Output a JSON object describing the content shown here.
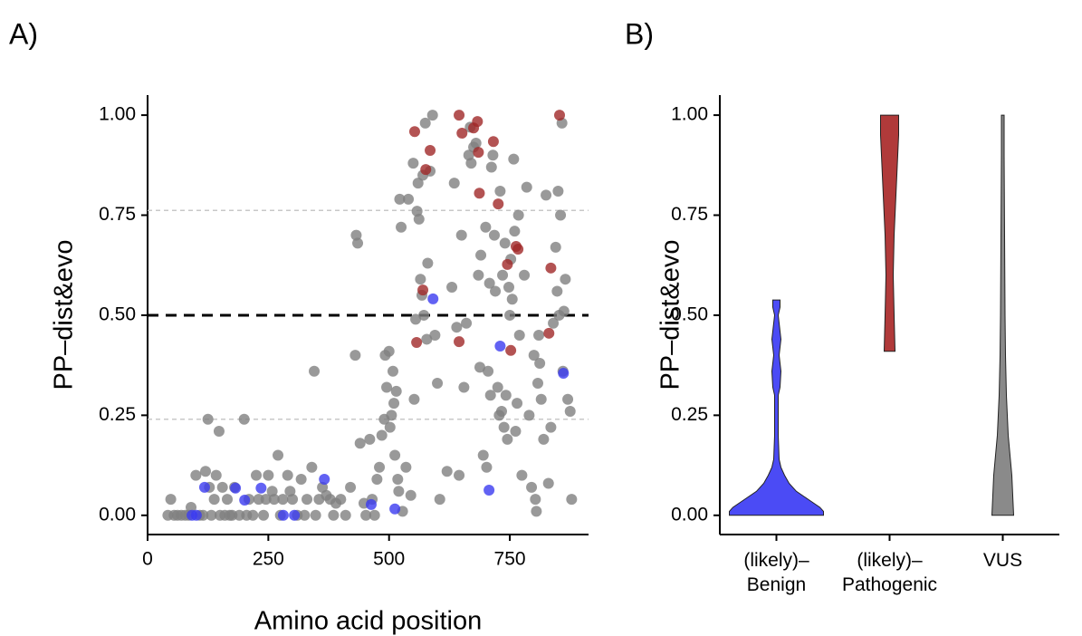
{
  "chart_data": [
    {
      "type": "scatter",
      "panel_label": "A)",
      "xlabel": "Amino acid position",
      "ylabel": "PP–dist&evo",
      "xlim": [
        0,
        913
      ],
      "ylim": [
        -0.048,
        1.05
      ],
      "xticks": [
        0,
        250,
        500,
        750
      ],
      "yticks": [
        {
          "value": 0,
          "label": "0.00"
        },
        {
          "value": 0.25,
          "label": "0.25"
        },
        {
          "value": 0.5,
          "label": "0.50"
        },
        {
          "value": 0.75,
          "label": "0.75"
        },
        {
          "value": 1,
          "label": "1.00"
        }
      ],
      "hlines": [
        {
          "value": 0.5,
          "color": "#000000",
          "dash": "12,8",
          "width": 3
        },
        {
          "value": 0.762,
          "color": "#c8c8c8",
          "dash": "5,4",
          "width": 1.5
        },
        {
          "value": 0.24,
          "color": "#c8c8c8",
          "dash": "5,4",
          "width": 1.5
        }
      ],
      "series": [
        {
          "color": "#808080",
          "x": [
            42,
            48,
            55,
            62,
            70,
            78,
            85,
            90,
            100,
            108,
            115,
            120,
            125,
            128,
            132,
            138,
            142,
            148,
            150,
            155,
            160,
            165,
            170,
            175,
            180,
            190,
            200,
            205,
            210,
            218,
            225,
            230,
            240,
            245,
            250,
            258,
            262,
            270,
            275,
            280,
            290,
            295,
            300,
            310,
            318,
            325,
            330,
            340,
            345,
            348,
            355,
            362,
            370,
            378,
            385,
            390,
            400,
            410,
            420,
            430,
            432,
            435,
            440,
            448,
            452,
            460,
            465,
            470,
            475,
            480,
            485,
            490,
            492,
            495,
            500,
            502,
            505,
            508,
            510,
            512,
            515,
            518,
            520,
            522,
            525,
            528,
            535,
            540,
            545,
            550,
            552,
            555,
            558,
            560,
            562,
            565,
            568,
            570,
            572,
            575,
            578,
            580,
            585,
            590,
            595,
            600,
            605,
            620,
            630,
            635,
            640,
            645,
            650,
            655,
            660,
            665,
            668,
            670,
            675,
            680,
            685,
            688,
            690,
            695,
            700,
            702,
            705,
            708,
            710,
            712,
            715,
            718,
            720,
            725,
            728,
            730,
            733,
            735,
            738,
            740,
            742,
            745,
            748,
            750,
            752,
            755,
            758,
            760,
            762,
            765,
            768,
            770,
            775,
            780,
            785,
            790,
            795,
            800,
            803,
            805,
            808,
            810,
            812,
            815,
            820,
            825,
            830,
            835,
            840,
            845,
            848,
            850,
            852,
            855,
            858,
            860,
            862,
            865,
            870,
            875,
            878
          ],
          "values": [
            0,
            0.04,
            0,
            0,
            0,
            0,
            0,
            0.02,
            0.1,
            0,
            0,
            0.11,
            0.24,
            0.07,
            0,
            0.04,
            0.1,
            0.21,
            0,
            0.07,
            0,
            0.04,
            0,
            0,
            0.07,
            0,
            0.24,
            0,
            0.04,
            0,
            0.1,
            0.04,
            0,
            0.04,
            0.1,
            0.06,
            0.04,
            0.15,
            0,
            0.04,
            0.1,
            0.06,
            0.04,
            0,
            0.09,
            0,
            0.04,
            0.12,
            0.36,
            0,
            0.04,
            0.07,
            0.05,
            0.04,
            0,
            0.03,
            0.04,
            0,
            0.07,
            0.4,
            0.7,
            0.68,
            0.18,
            0.03,
            0,
            0.19,
            0.04,
            0,
            0.09,
            0.12,
            0.2,
            0.24,
            0.4,
            0.32,
            0.41,
            0.22,
            0.25,
            0.36,
            0.28,
            0.15,
            0.31,
            0.09,
            0.06,
            0.79,
            0.72,
            0.01,
            0.12,
            0.79,
            0.05,
            0.88,
            0.29,
            0.49,
            0.76,
            0.83,
            0.74,
            0.59,
            0.55,
            0.85,
            0.5,
            0.98,
            0.44,
            0.63,
            0.86,
            1,
            0.45,
            0.33,
            0.04,
            0.11,
            0.57,
            0.83,
            0.47,
            0.1,
            0.7,
            0.32,
            0.48,
            0.9,
            0.97,
            0.88,
            0.92,
            0.93,
            0.6,
            0.37,
            0.65,
            0.15,
            0.72,
            0.12,
            0.36,
            0.58,
            0.3,
            0.87,
            0.9,
            0.7,
            0.56,
            0.32,
            0.25,
            0.81,
            0.26,
            0.6,
            0.22,
            0.68,
            0.3,
            0.19,
            0.57,
            0.5,
            0.64,
            0.54,
            0.89,
            0.71,
            0.21,
            0.28,
            0.75,
            0.45,
            0.1,
            0.6,
            0.82,
            0.25,
            0.07,
            0.4,
            0.04,
            0.01,
            0.33,
            0.45,
            0.38,
            0.29,
            0.19,
            0.8,
            0.08,
            0.22,
            0.48,
            0.67,
            0.56,
            0.81,
            0.5,
            0.75,
            0.98,
            0.36,
            0.51,
            0.59,
            0.29,
            0.26,
            0.04
          ]
        },
        {
          "color": "#3b3bf0",
          "x": [
            591,
            730,
            861,
            707,
            512,
            463,
            366,
            304,
            281,
            235,
            201,
            182,
            118,
            101,
            92
          ],
          "values": [
            0.541,
            0.423,
            0.355,
            0.063,
            0.016,
            0.027,
            0.09,
            0,
            0,
            0.068,
            0.038,
            0.068,
            0.07,
            0,
            0
          ]
        },
        {
          "color": "#a02828",
          "x": [
            553,
            585,
            576,
            645,
            651,
            683,
            675,
            685,
            716,
            687,
            726,
            745,
            763,
            767,
            835,
            853,
            570,
            557,
            645,
            752,
            831
          ],
          "values": [
            0.959,
            0.912,
            0.864,
            1,
            0.955,
            0.984,
            0.968,
            0.907,
            0.934,
            0.805,
            0.778,
            0.627,
            0.672,
            0.665,
            0.618,
            1,
            0.563,
            0.432,
            0.434,
            0.412,
            0.455
          ]
        }
      ]
    },
    {
      "type": "violin",
      "panel_label": "B)",
      "ylabel": "PP–dist&evo",
      "ylim": [
        -0.048,
        1.05
      ],
      "yticks": [
        {
          "value": 0,
          "label": "0.00"
        },
        {
          "value": 0.25,
          "label": "0.25"
        },
        {
          "value": 0.5,
          "label": "0.50"
        },
        {
          "value": 0.75,
          "label": "0.75"
        },
        {
          "value": 1,
          "label": "1.00"
        }
      ],
      "categories": [
        "(likely)–\nBenign",
        "(likely)–\nPathogenic",
        "VUS"
      ],
      "violins": [
        {
          "color": "#4b4bf5",
          "y": [
            0,
            0.01,
            0.02,
            0.04,
            0.06,
            0.08,
            0.1,
            0.12,
            0.14,
            0.2,
            0.3,
            0.32,
            0.36,
            0.4,
            0.44,
            0.48,
            0.5,
            0.52,
            0.538
          ],
          "half_width": [
            52,
            52,
            48,
            35,
            22,
            14,
            9,
            5,
            3,
            2,
            2,
            4,
            5,
            3,
            5,
            3,
            2,
            4,
            4
          ]
        },
        {
          "color": "#b03a3a",
          "y": [
            0.41,
            0.5,
            0.6,
            0.7,
            0.8,
            0.9,
            0.95,
            1
          ],
          "half_width": [
            6,
            5,
            4,
            5,
            7,
            9,
            10,
            10
          ]
        },
        {
          "color": "#8a8a8a",
          "y": [
            0,
            0.05,
            0.1,
            0.15,
            0.2,
            0.3,
            0.4,
            0.5,
            0.7,
            0.9,
            1
          ],
          "half_width": [
            12,
            11,
            10,
            8,
            6,
            4,
            3,
            2.5,
            2,
            1.5,
            1.5
          ]
        }
      ]
    }
  ]
}
